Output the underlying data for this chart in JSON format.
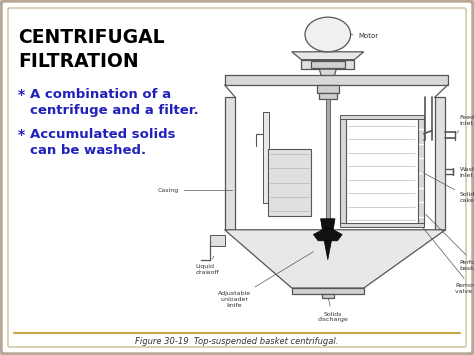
{
  "background_color": "#e8e4dc",
  "inner_bg_color": "#ffffff",
  "outer_border_color": "#b8a898",
  "inner_border_color": "#d4c8a8",
  "title_line1": "CENTRIFUGAL",
  "title_line2": "FILTRATION",
  "title_color": "#000000",
  "title_fontsize": 13.5,
  "bullet1_star": "*",
  "bullet1_text_line1": "A combination of a",
  "bullet1_text_line2": "centrifuge and a filter.",
  "bullet2_star": "*",
  "bullet2_text_line1": "Accumulated solids",
  "bullet2_text_line2": "can be washed.",
  "bullet_color": "#2222bb",
  "bullet_fontsize": 9.5,
  "star_color": "#2222bb",
  "star_fontsize": 10,
  "caption": "Figure 30-19  Top-suspended basket centrifugal.",
  "caption_color": "#333333",
  "caption_fontsize": 6.0,
  "sep_line_color": "#c8a840",
  "diagram_line_color": "#555555",
  "diagram_bg": "#f8f8f0",
  "label_fontsize": 4.5,
  "label_color": "#333333"
}
